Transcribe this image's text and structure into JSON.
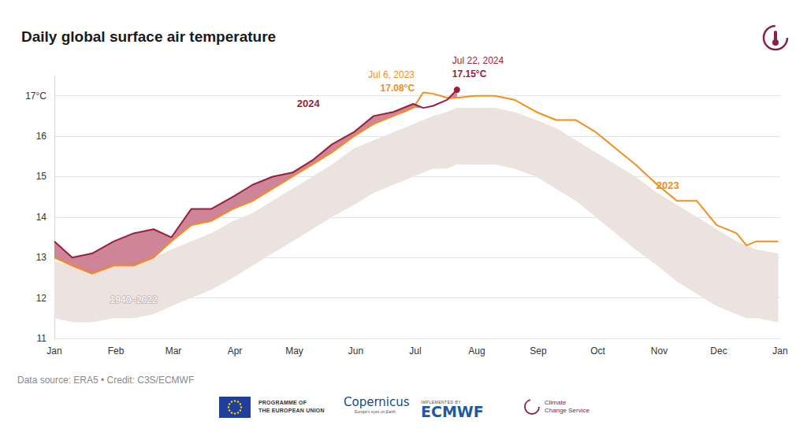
{
  "chart_data": {
    "type": "line",
    "title": "Daily global surface air temperature",
    "x": [
      0,
      9,
      19,
      30,
      40,
      50,
      59,
      69,
      79,
      90,
      100,
      110,
      120,
      130,
      140,
      151,
      161,
      171,
      181,
      186,
      191,
      198,
      203,
      212,
      222,
      232,
      243,
      253,
      263,
      273,
      283,
      293,
      304,
      314,
      324,
      334,
      344,
      349,
      354,
      365
    ],
    "xlim": [
      0,
      366
    ],
    "xticks": [
      {
        "value": 0,
        "label": "Jan"
      },
      {
        "value": 31,
        "label": "Feb"
      },
      {
        "value": 60,
        "label": "Mar"
      },
      {
        "value": 91,
        "label": "Apr"
      },
      {
        "value": 121,
        "label": "May"
      },
      {
        "value": 152,
        "label": "Jun"
      },
      {
        "value": 182,
        "label": "Jul"
      },
      {
        "value": 213,
        "label": "Aug"
      },
      {
        "value": 244,
        "label": "Sep"
      },
      {
        "value": 274,
        "label": "Oct"
      },
      {
        "value": 305,
        "label": "Nov"
      },
      {
        "value": 335,
        "label": "Dec"
      },
      {
        "value": 366,
        "label": "Jan"
      }
    ],
    "ylim": [
      11,
      17.5
    ],
    "yticks": [
      11,
      12,
      13,
      14,
      15,
      16,
      {
        "value": 17,
        "label": "17°C"
      }
    ],
    "grid": true,
    "series": [
      {
        "name": "1940–2022",
        "type": "band",
        "color": "#ece2e0",
        "lower": [
          11.5,
          11.4,
          11.4,
          11.5,
          11.5,
          11.6,
          11.8,
          12.0,
          12.2,
          12.5,
          12.8,
          13.1,
          13.4,
          13.7,
          14.0,
          14.3,
          14.6,
          14.8,
          15.0,
          15.1,
          15.2,
          15.2,
          15.3,
          15.3,
          15.3,
          15.2,
          15.0,
          14.7,
          14.4,
          14.0,
          13.6,
          13.2,
          12.8,
          12.4,
          12.1,
          11.8,
          11.6,
          11.5,
          11.5,
          11.4
        ],
        "upper": [
          12.9,
          12.8,
          12.7,
          12.8,
          12.9,
          13.0,
          13.2,
          13.4,
          13.6,
          13.9,
          14.1,
          14.4,
          14.7,
          15.0,
          15.3,
          15.7,
          15.9,
          16.1,
          16.3,
          16.4,
          16.5,
          16.6,
          16.7,
          16.7,
          16.7,
          16.6,
          16.4,
          16.2,
          15.9,
          15.6,
          15.3,
          15.0,
          14.6,
          14.3,
          14.0,
          13.7,
          13.4,
          13.3,
          13.2,
          13.1
        ]
      },
      {
        "name": "2023",
        "type": "line",
        "color": "#f28e1c",
        "values": [
          13.0,
          12.8,
          12.6,
          12.8,
          12.8,
          13.0,
          13.4,
          13.8,
          13.9,
          14.2,
          14.4,
          14.7,
          15.0,
          15.3,
          15.6,
          16.0,
          16.3,
          16.5,
          16.7,
          17.08,
          17.05,
          16.95,
          16.95,
          17.0,
          17.0,
          16.9,
          16.6,
          16.4,
          16.4,
          16.1,
          15.7,
          15.3,
          14.8,
          14.4,
          14.4,
          13.8,
          13.6,
          13.3,
          13.4,
          13.4
        ]
      },
      {
        "name": "2024",
        "type": "line",
        "color": "#9c1d3c",
        "values": [
          13.4,
          13.0,
          13.1,
          13.4,
          13.6,
          13.7,
          13.5,
          14.2,
          14.2,
          14.5,
          14.8,
          15.0,
          15.1,
          15.4,
          15.8,
          16.1,
          16.5,
          16.6,
          16.8,
          16.7,
          16.75,
          16.9,
          17.15,
          null,
          null,
          null,
          null,
          null,
          null,
          null,
          null,
          null,
          null,
          null,
          null,
          null,
          null,
          null,
          null,
          null
        ]
      }
    ],
    "annotations": [
      {
        "series": "2023",
        "x": 186,
        "y": 17.08,
        "date": "Jul 6, 2023",
        "value_label": "17.08°C"
      },
      {
        "series": "2024",
        "x": 203,
        "y": 17.15,
        "date": "Jul 22, 2024",
        "value_label": "17.15°C"
      }
    ],
    "footer": {
      "source": "Data source: ERA5 • Credit: C3S/ECMWF",
      "logos": [
        [
          "PROGRAMME OF",
          "THE EUROPEAN UNION"
        ],
        [
          "Copernicus",
          "Europe's eyes on Earth"
        ],
        [
          "IMPLEMENTED BY",
          "ECMWF"
        ],
        [
          "Climate",
          "Change Service"
        ]
      ]
    }
  }
}
